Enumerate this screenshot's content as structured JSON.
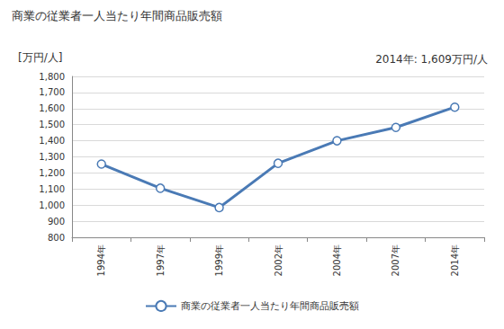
{
  "chart_data": {
    "type": "line",
    "title": "商業の従業者一人当たり年間商品販売額",
    "ylabel": "[万円/人]",
    "annotation": "2014年: 1,609万円/人",
    "categories": [
      "1994年",
      "1997年",
      "1999年",
      "2002年",
      "2004年",
      "2007年",
      "2014年"
    ],
    "series": [
      {
        "name": "商業の従業者一人当たり年間商品販売額",
        "color": "#4a7ab5",
        "marker": "circle",
        "values": [
          1255,
          1105,
          985,
          1260,
          1400,
          1483,
          1609
        ]
      }
    ],
    "ylim": [
      800,
      1800
    ],
    "yticks": [
      800,
      900,
      {
        "value": 1000,
        "label": "1,000"
      },
      {
        "value": 1100,
        "label": "1,100"
      },
      {
        "value": 1200,
        "label": "1,200"
      },
      {
        "value": 1300,
        "label": "1,300"
      },
      {
        "value": 1400,
        "label": "1,400"
      },
      {
        "value": 1500,
        "label": "1,500"
      },
      {
        "value": 1600,
        "label": "1,600"
      },
      {
        "value": 1700,
        "label": "1,700"
      },
      {
        "value": 1800,
        "label": "1,800"
      }
    ],
    "grid": true,
    "legend": "bottom"
  }
}
